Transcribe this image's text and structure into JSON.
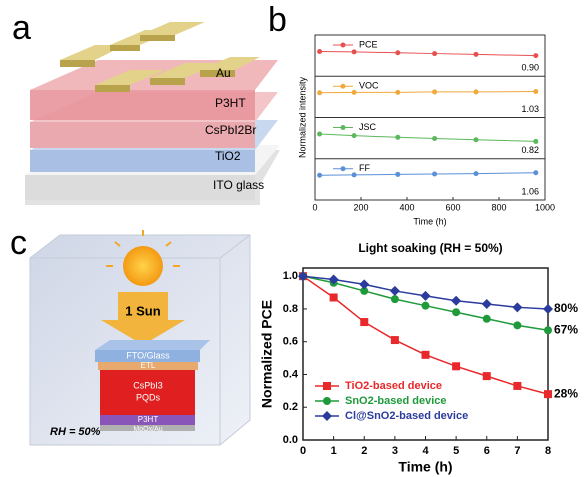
{
  "panels": {
    "labels": [
      "a",
      "b",
      "c"
    ],
    "device_a": {
      "layers": [
        "Au",
        "P3HT",
        "CsPbI2Br",
        "TiO2",
        "ITO glass"
      ]
    },
    "device_c": {
      "light": "1 Sun",
      "layers": [
        "FTO/Glass",
        "ETL",
        "CsPbI3",
        "PQDs",
        "P3HT",
        "MoOx/Au"
      ],
      "condition": "RH = 50%"
    }
  },
  "chart_data": [
    {
      "type": "line",
      "ylabel": "Normalized intensity",
      "xlabel": "Time (h)",
      "x": [
        20,
        170,
        360,
        520,
        700,
        960
      ],
      "xlim": [
        0,
        1000
      ],
      "xticks": [
        0,
        200,
        400,
        600,
        800,
        1000
      ],
      "series": [
        {
          "name": "PCE",
          "color": "#e8504f",
          "ylim": [
            0.4,
            1.4
          ],
          "values": [
            1.0,
            0.99,
            0.97,
            0.95,
            0.93,
            0.9
          ],
          "value_labels": [
            null,
            null,
            null,
            null,
            null,
            "0.90"
          ]
        },
        {
          "name": "VOC",
          "color": "#f2a93b",
          "ylim": [
            0.4,
            1.4
          ],
          "values": [
            1.0,
            1.01,
            1.01,
            1.02,
            1.02,
            1.03
          ],
          "value_labels": [
            null,
            null,
            null,
            null,
            null,
            "1.03"
          ]
        },
        {
          "name": "JSC",
          "color": "#5cb85c",
          "ylim": [
            0.4,
            1.4
          ],
          "values": [
            1.0,
            0.96,
            0.92,
            0.89,
            0.86,
            0.82
          ],
          "value_labels": [
            null,
            null,
            null,
            null,
            null,
            "0.82"
          ]
        },
        {
          "name": "FF",
          "color": "#5b8fd6",
          "ylim": [
            0.4,
            1.4
          ],
          "values": [
            1.0,
            1.01,
            1.02,
            1.03,
            1.04,
            1.06
          ],
          "value_labels": [
            null,
            null,
            null,
            null,
            null,
            "1.06"
          ]
        }
      ]
    },
    {
      "type": "line",
      "title": "Light soaking (RH = 50%)",
      "ylabel": "Normalized PCE",
      "xlabel": "Time (h)",
      "x": [
        0,
        1,
        2,
        3,
        4,
        5,
        6,
        7,
        8
      ],
      "xlim": [
        0,
        8
      ],
      "xticks": [
        0,
        1,
        2,
        3,
        4,
        5,
        6,
        7,
        8
      ],
      "ylim": [
        0,
        1.05
      ],
      "yticks": [
        {
          "value": 0,
          "label": "0.0"
        },
        0.2,
        0.4,
        0.6,
        0.8,
        {
          "value": 1,
          "label": "1.0"
        }
      ],
      "series": [
        {
          "name": "TiO2-based device",
          "color": "#e8282a",
          "marker": "square",
          "values": [
            1.0,
            0.87,
            0.72,
            0.61,
            0.52,
            0.45,
            0.39,
            0.33,
            0.28
          ],
          "value_labels": [
            null,
            null,
            null,
            null,
            null,
            null,
            null,
            null,
            "28%"
          ]
        },
        {
          "name": "SnO2-based device",
          "color": "#1f9a3a",
          "marker": "circle",
          "values": [
            1.0,
            0.96,
            0.91,
            0.86,
            0.82,
            0.78,
            0.74,
            0.7,
            0.67
          ],
          "value_labels": [
            null,
            null,
            null,
            null,
            null,
            null,
            null,
            null,
            "67%"
          ]
        },
        {
          "name": "Cl@SnO2-based device",
          "color": "#2b3b9e",
          "marker": "diamond",
          "values": [
            1.0,
            0.98,
            0.95,
            0.91,
            0.88,
            0.85,
            0.83,
            0.81,
            0.8
          ],
          "value_labels": [
            null,
            null,
            null,
            null,
            null,
            null,
            null,
            null,
            "80%"
          ]
        }
      ]
    }
  ]
}
